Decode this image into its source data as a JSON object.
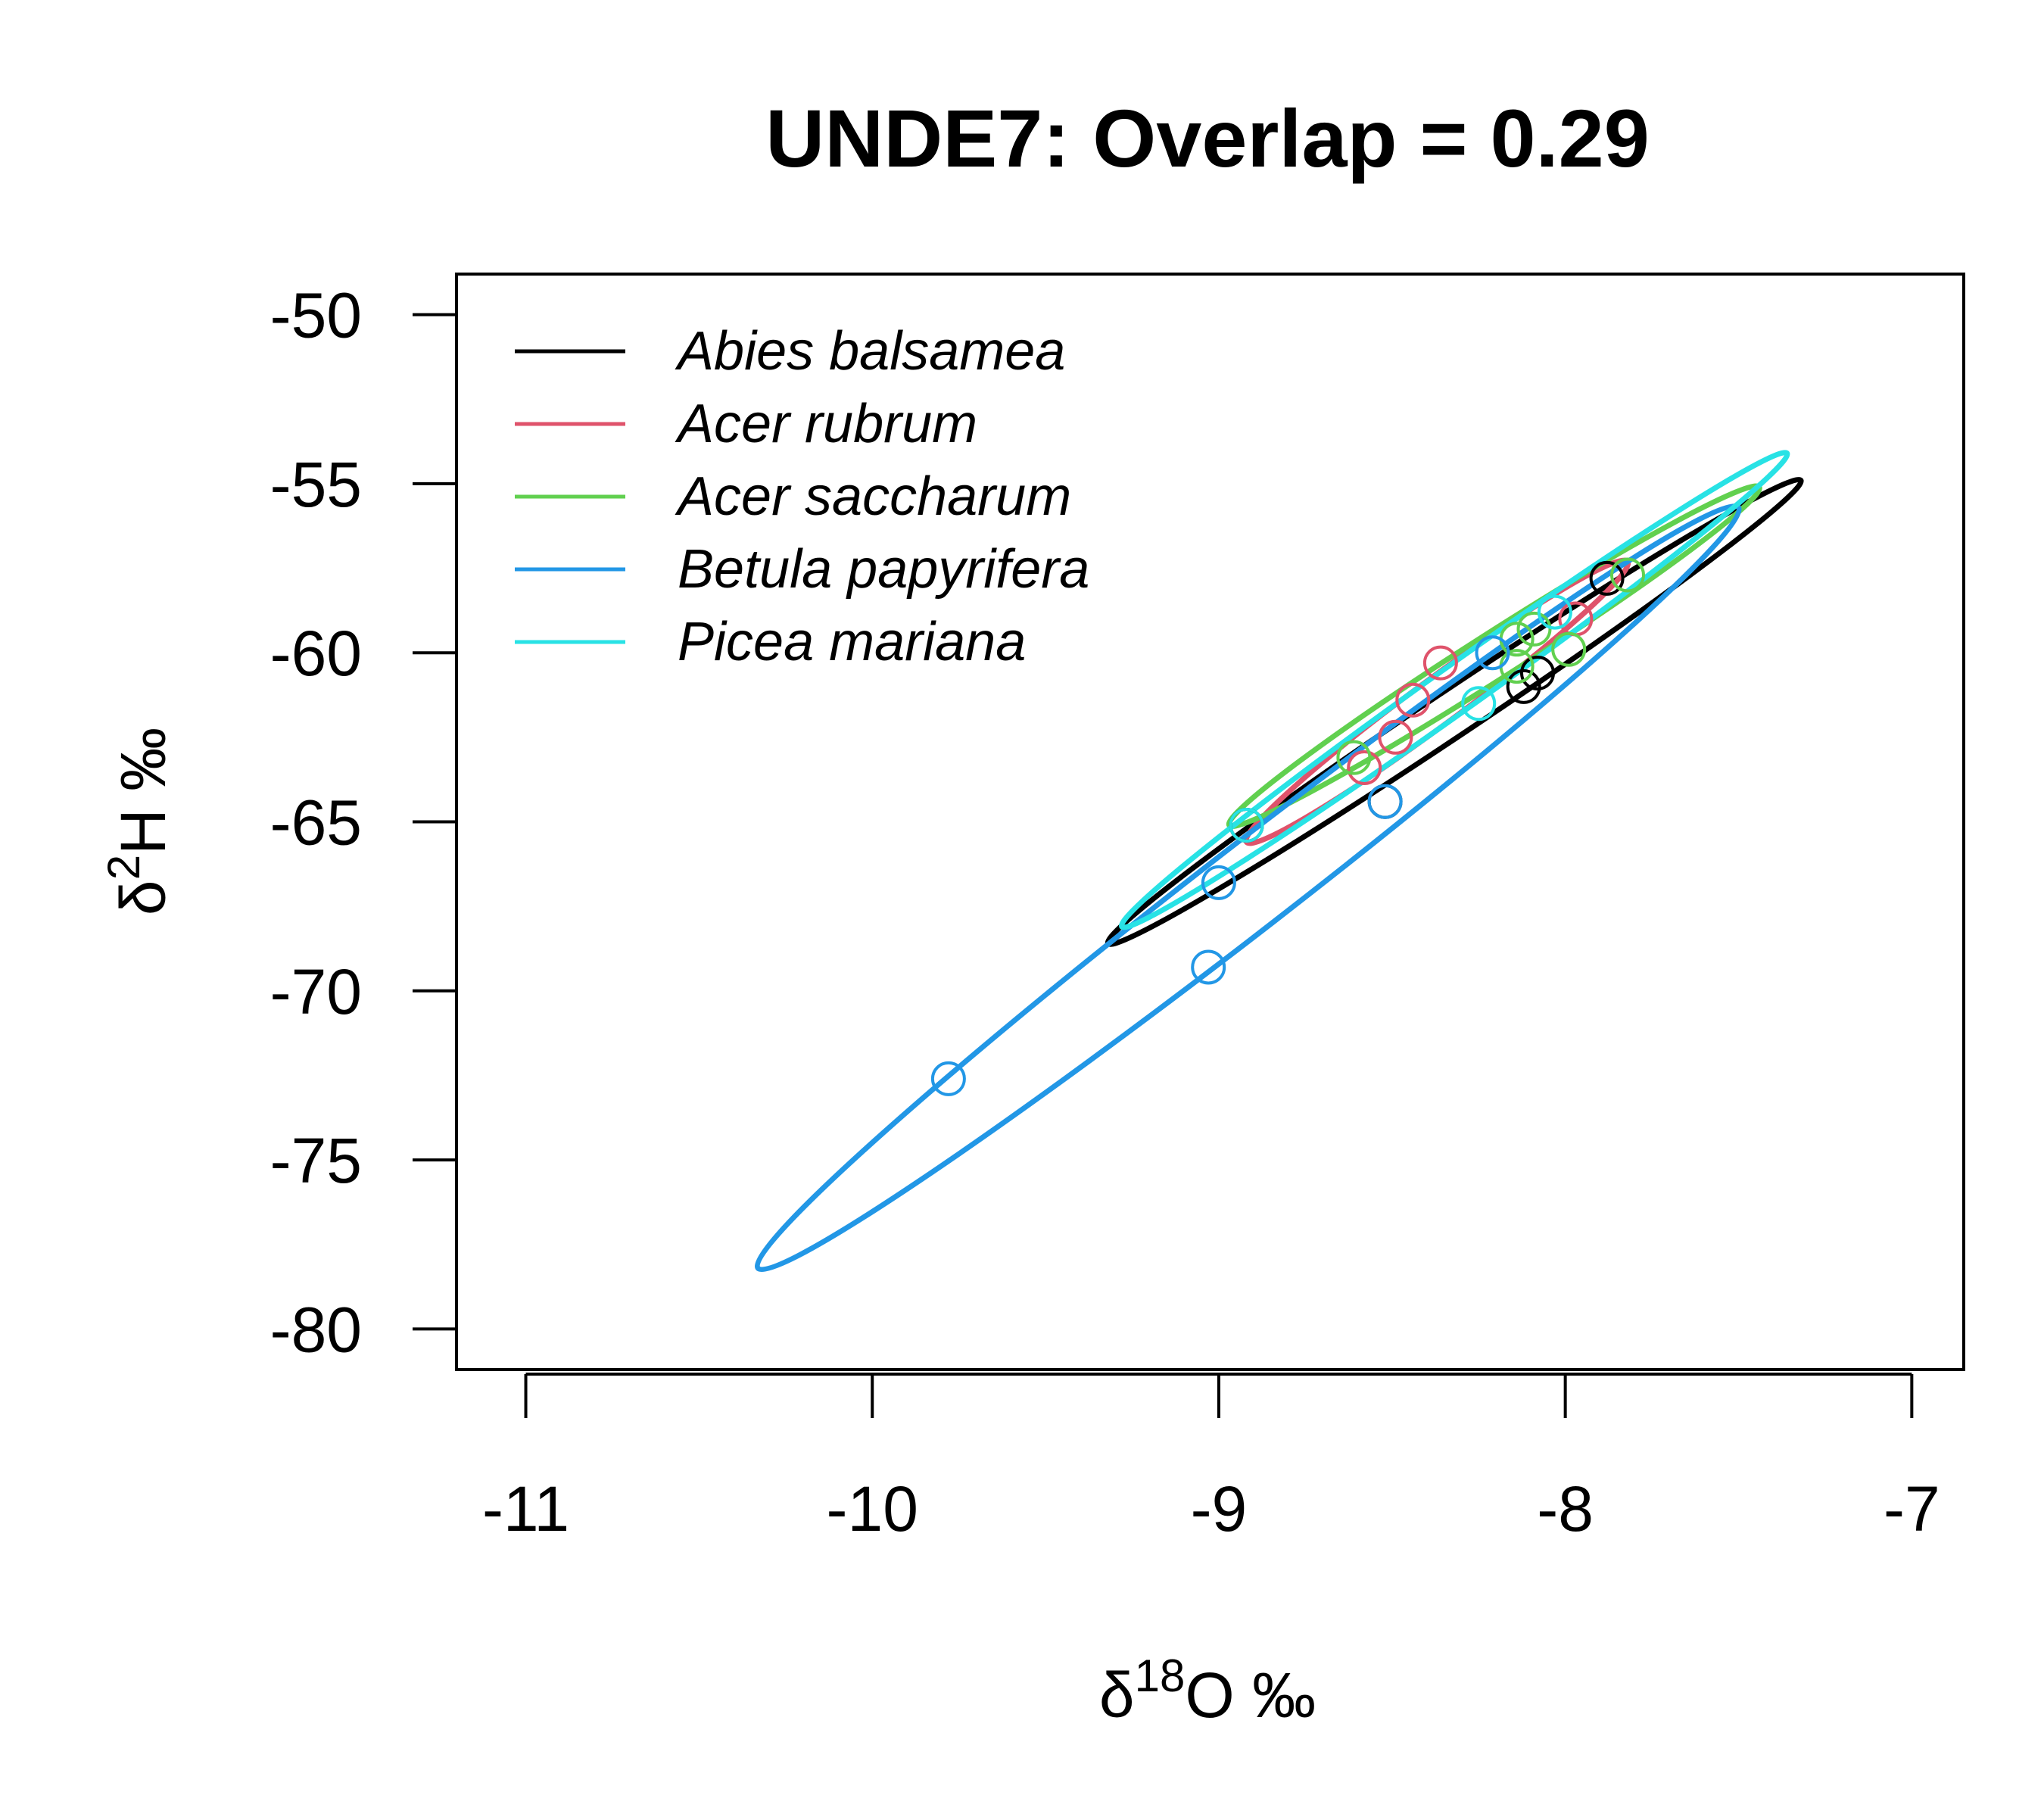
{
  "chart_data": {
    "type": "scatter",
    "title": "UNDE7: Overlap =  0.29",
    "xlabel": {
      "symbol": "δ",
      "sup": "18",
      "rest": "O ‰"
    },
    "ylabel": {
      "symbol": "δ",
      "sup": "2",
      "rest": "H ‰"
    },
    "xlim": [
      -11.2,
      -6.85
    ],
    "ylim": [
      -81.2,
      -48.8
    ],
    "x_ticks": [
      -11,
      -10,
      -9,
      -8,
      -7
    ],
    "x_tick_labels": [
      "-11",
      "-10",
      "-9",
      "-8",
      "-7"
    ],
    "y_ticks": [
      -80,
      -75,
      -70,
      -65,
      -60,
      -55,
      -50
    ],
    "y_tick_labels": [
      "-80",
      "-75",
      "-70",
      "-65",
      "-60",
      "-55",
      "-50"
    ],
    "legend_position": "top-left",
    "grid": false,
    "series": [
      {
        "name": "Abies balsamea",
        "color": "#000000",
        "points": [
          [
            -7.88,
            -57.8
          ],
          [
            -8.08,
            -60.6
          ],
          [
            -8.12,
            -61.0
          ],
          [
            -8.52,
            -64.4
          ],
          [
            -8.92,
            -65.1
          ]
        ],
        "ellipse": [
          [
            -9.32,
            -68.6
          ],
          [
            -7.32,
            -54.9
          ],
          [
            -7.32,
            -55.6
          ],
          [
            -9.28,
            -68.2
          ]
        ]
      },
      {
        "name": "Acer rubrum",
        "color": "#DF536B",
        "points": [
          [
            -7.97,
            -59.0
          ],
          [
            -8.36,
            -60.3
          ],
          [
            -8.44,
            -61.4
          ],
          [
            -8.49,
            -62.5
          ],
          [
            -8.58,
            -63.4
          ]
        ],
        "ellipse": [
          [
            -8.92,
            -65.6
          ],
          [
            -7.82,
            -57.3
          ],
          [
            -7.82,
            -57.6
          ],
          [
            -8.9,
            -65.2
          ]
        ]
      },
      {
        "name": "Acer saccharum",
        "color": "#61D04F",
        "points": [
          [
            -7.82,
            -57.7
          ],
          [
            -7.99,
            -59.9
          ],
          [
            -8.09,
            -59.3
          ],
          [
            -8.14,
            -59.6
          ],
          [
            -8.61,
            -63.1
          ],
          [
            -8.14,
            -60.4
          ]
        ],
        "ellipse": [
          [
            -8.97,
            -65.1
          ],
          [
            -7.44,
            -55.1
          ],
          [
            -7.45,
            -55.5
          ],
          [
            -8.93,
            -64.6
          ]
        ]
      },
      {
        "name": "Betula papyrifera",
        "color": "#2297E6",
        "points": [
          [
            -8.21,
            -60.0
          ],
          [
            -8.52,
            -64.4
          ],
          [
            -9.0,
            -66.8
          ],
          [
            -9.03,
            -69.3
          ],
          [
            -9.78,
            -72.6
          ]
        ],
        "ellipse": [
          [
            -10.33,
            -78.2
          ],
          [
            -7.5,
            -55.7
          ],
          [
            -7.5,
            -57.0
          ],
          [
            -10.3,
            -77.9
          ]
        ]
      },
      {
        "name": "Picea mariana",
        "color": "#28E2E5",
        "points": [
          [
            -8.03,
            -58.8
          ],
          [
            -8.25,
            -61.5
          ],
          [
            -8.92,
            -65.1
          ]
        ],
        "ellipse": [
          [
            -9.28,
            -68.1
          ],
          [
            -7.36,
            -54.1
          ],
          [
            -7.36,
            -54.6
          ],
          [
            -9.25,
            -67.7
          ]
        ]
      }
    ]
  }
}
